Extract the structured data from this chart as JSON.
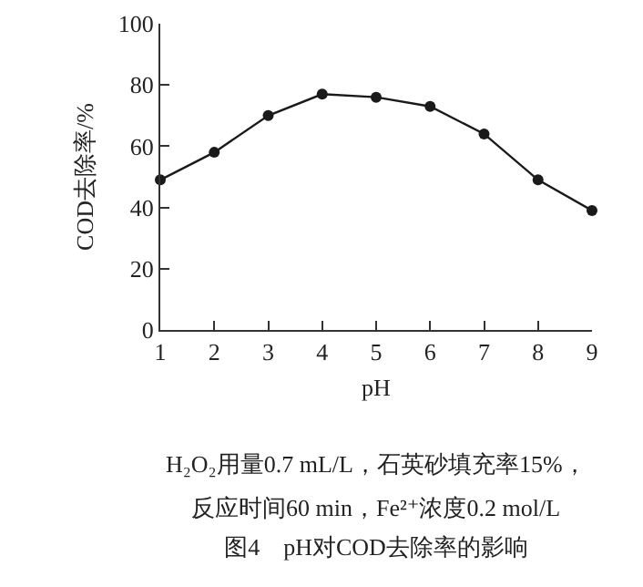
{
  "chart_data": {
    "type": "line",
    "title": "图4　pH对COD去除率的影响",
    "xlabel": "pH",
    "ylabel": "COD去除率/%",
    "annotations": [
      "H₂O₂用量0.7 mL/L，石英砂填充率15%，",
      "反应时间60 min，Fe²⁺浓度0.2 mol/L"
    ],
    "x": [
      1,
      2,
      3,
      4,
      5,
      6,
      7,
      8,
      9
    ],
    "series": [
      {
        "color": "#1a1a1a",
        "values": [
          49,
          58,
          70,
          77,
          76,
          73,
          64,
          49,
          39
        ]
      }
    ],
    "xlim": [
      1,
      9
    ],
    "xticks": [
      1,
      2,
      3,
      4,
      5,
      6,
      7,
      8,
      9
    ],
    "ylim": [
      0,
      100
    ],
    "yticks": [
      0,
      20,
      40,
      60,
      80,
      100
    ],
    "grid": false,
    "marker": "circle",
    "line_style": "solid"
  }
}
